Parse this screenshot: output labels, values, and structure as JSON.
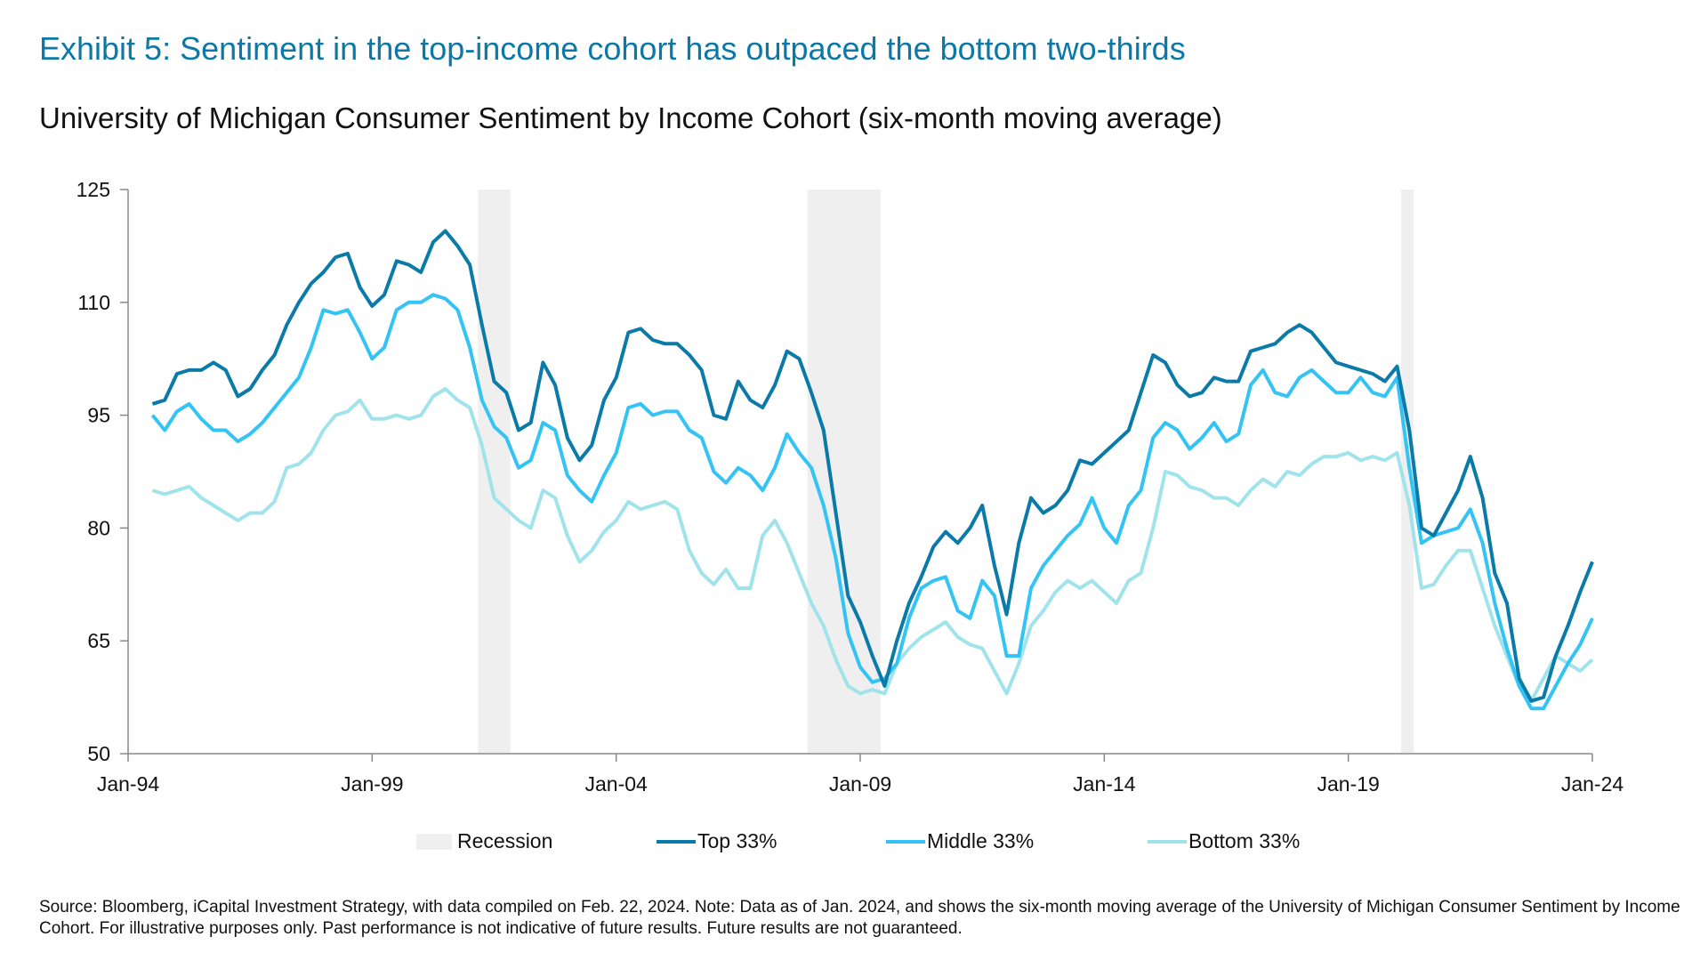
{
  "title": "Exhibit 5: Sentiment in the top-income cohort has outpaced the bottom two-thirds",
  "subtitle": "University of Michigan Consumer Sentiment by Income Cohort (six-month moving average)",
  "source": "Source: Bloomberg, iCapital Investment Strategy, with data compiled on Feb. 22, 2024. Note: Data as of Jan. 2024, and shows the six-month moving average of the University of Michigan Consumer Sentiment by Income Cohort. For illustrative purposes only. Past performance is not indicative of future results. Future results are not guaranteed.",
  "chart_data": {
    "type": "line",
    "title": "",
    "xlabel": "",
    "ylabel": "",
    "ylim": [
      50,
      125
    ],
    "yticks": [
      50,
      65,
      80,
      95,
      110,
      125
    ],
    "xlim": [
      "1994-01",
      "2024-01"
    ],
    "xticks": [
      {
        "date": "1994-01",
        "label": "Jan-94"
      },
      {
        "date": "1999-01",
        "label": "Jan-99"
      },
      {
        "date": "2004-01",
        "label": "Jan-04"
      },
      {
        "date": "2009-01",
        "label": "Jan-09"
      },
      {
        "date": "2014-01",
        "label": "Jan-14"
      },
      {
        "date": "2019-01",
        "label": "Jan-19"
      },
      {
        "date": "2024-01",
        "label": "Jan-24"
      }
    ],
    "grid": false,
    "legend_position": "bottom",
    "recession_label": "Recession",
    "recession_color": "#efefef",
    "recessions": [
      {
        "start": "2001-03",
        "end": "2001-11"
      },
      {
        "start": "2007-12",
        "end": "2009-06"
      },
      {
        "start": "2020-02",
        "end": "2020-04"
      }
    ],
    "x": [
      "1994-07",
      "1994-10",
      "1995-01",
      "1995-04",
      "1995-07",
      "1995-10",
      "1996-01",
      "1996-04",
      "1996-07",
      "1996-10",
      "1997-01",
      "1997-04",
      "1997-07",
      "1997-10",
      "1998-01",
      "1998-04",
      "1998-07",
      "1998-10",
      "1999-01",
      "1999-04",
      "1999-07",
      "1999-10",
      "2000-01",
      "2000-04",
      "2000-07",
      "2000-10",
      "2001-01",
      "2001-04",
      "2001-07",
      "2001-10",
      "2002-01",
      "2002-04",
      "2002-07",
      "2002-10",
      "2003-01",
      "2003-04",
      "2003-07",
      "2003-10",
      "2004-01",
      "2004-04",
      "2004-07",
      "2004-10",
      "2005-01",
      "2005-04",
      "2005-07",
      "2005-10",
      "2006-01",
      "2006-04",
      "2006-07",
      "2006-10",
      "2007-01",
      "2007-04",
      "2007-07",
      "2007-10",
      "2008-01",
      "2008-04",
      "2008-07",
      "2008-10",
      "2009-01",
      "2009-04",
      "2009-07",
      "2009-10",
      "2010-01",
      "2010-04",
      "2010-07",
      "2010-10",
      "2011-01",
      "2011-04",
      "2011-07",
      "2011-10",
      "2012-01",
      "2012-04",
      "2012-07",
      "2012-10",
      "2013-01",
      "2013-04",
      "2013-07",
      "2013-10",
      "2014-01",
      "2014-04",
      "2014-07",
      "2014-10",
      "2015-01",
      "2015-04",
      "2015-07",
      "2015-10",
      "2016-01",
      "2016-04",
      "2016-07",
      "2016-10",
      "2017-01",
      "2017-04",
      "2017-07",
      "2017-10",
      "2018-01",
      "2018-04",
      "2018-07",
      "2018-10",
      "2019-01",
      "2019-04",
      "2019-07",
      "2019-10",
      "2020-01",
      "2020-04",
      "2020-07",
      "2020-10",
      "2021-01",
      "2021-04",
      "2021-07",
      "2021-10",
      "2022-01",
      "2022-04",
      "2022-07",
      "2022-10",
      "2023-01",
      "2023-04",
      "2023-07",
      "2023-10",
      "2024-01"
    ],
    "series": [
      {
        "name": "Top 33%",
        "color": "#0a7aa8",
        "values": [
          96.5,
          97,
          100.5,
          101,
          101,
          102,
          101,
          97.5,
          98.5,
          101,
          103,
          107,
          110,
          112.5,
          114,
          116,
          116.5,
          112,
          109.5,
          111,
          115.5,
          115,
          114,
          118,
          119.5,
          117.5,
          115,
          107,
          99.5,
          98,
          93,
          94,
          102,
          99,
          92,
          89,
          91,
          97,
          100,
          106,
          106.5,
          105,
          104.5,
          104.5,
          103,
          101,
          95,
          94.5,
          99.5,
          97,
          96,
          99,
          103.5,
          102.5,
          98,
          93,
          82,
          71,
          67.5,
          63,
          59,
          65,
          70,
          73.5,
          77.5,
          79.5,
          78,
          80,
          83,
          75,
          68.5,
          78,
          84,
          82,
          83,
          85,
          89,
          88.5,
          90,
          91.5,
          93,
          98,
          103,
          102,
          99,
          97.5,
          98,
          100,
          99.5,
          99.5,
          103.5,
          104,
          104.5,
          106,
          107,
          106,
          104,
          102,
          101.5,
          101,
          100.5,
          99.5,
          101.5,
          93,
          80,
          79,
          82,
          85,
          89.5,
          84,
          74,
          70,
          60,
          57,
          57.5,
          63,
          67,
          71.5,
          75.5
        ]
      },
      {
        "name": "Middle 33%",
        "color": "#33c3f5",
        "values": [
          95,
          93,
          95.5,
          96.5,
          94.5,
          93,
          93,
          91.5,
          92.5,
          94,
          96,
          98,
          100,
          104,
          109,
          108.5,
          109,
          106,
          102.5,
          104,
          109,
          110,
          110,
          111,
          110.5,
          109,
          104,
          97,
          93.5,
          92,
          88,
          89,
          94,
          93,
          87,
          85,
          83.5,
          87,
          90,
          96,
          96.5,
          95,
          95.5,
          95.5,
          93,
          92,
          87.5,
          86,
          88,
          87,
          85,
          88,
          92.5,
          90,
          88,
          83,
          76,
          66,
          61.5,
          59.5,
          60,
          62,
          68,
          72,
          73,
          73.5,
          69,
          68,
          73,
          71,
          63,
          63,
          72,
          75,
          77,
          79,
          80.5,
          84,
          80,
          78,
          83,
          85,
          92,
          94,
          93,
          90.5,
          92,
          94,
          91.5,
          92.5,
          99,
          101,
          98,
          97.5,
          100,
          101,
          99.5,
          98,
          98,
          100,
          98,
          97.5,
          100,
          88,
          78,
          79,
          79.5,
          80,
          82.5,
          78,
          70,
          64,
          59,
          56,
          56,
          59,
          62,
          64.5,
          68
        ]
      },
      {
        "name": "Bottom 33%",
        "color": "#a0e3ea",
        "values": [
          85,
          84.5,
          85,
          85.5,
          84,
          83,
          82,
          81,
          82,
          82,
          83.5,
          88,
          88.5,
          90,
          93,
          95,
          95.5,
          97,
          94.5,
          94.5,
          95,
          94.5,
          95,
          97.5,
          98.5,
          97,
          96,
          91,
          84,
          82.5,
          81,
          80,
          85,
          84,
          79,
          75.5,
          77,
          79.5,
          81,
          83.5,
          82.5,
          83,
          83.5,
          82.5,
          77,
          74,
          72.5,
          74.5,
          72,
          72,
          79,
          81,
          78,
          74,
          70,
          67,
          62.5,
          59,
          58,
          58.5,
          58,
          62,
          64,
          65.5,
          66.5,
          67.5,
          65.5,
          64.5,
          64,
          61,
          58,
          62,
          67,
          69,
          71.5,
          73,
          72,
          73,
          71.5,
          70,
          73,
          74,
          80,
          87.5,
          87,
          85.5,
          85,
          84,
          84,
          83,
          85,
          86.5,
          85.5,
          87.5,
          87,
          88.5,
          89.5,
          89.5,
          90,
          89,
          89.5,
          89,
          90,
          83,
          72,
          72.5,
          75,
          77,
          77,
          72,
          67,
          63,
          59,
          57,
          60,
          63,
          62,
          61,
          62.5
        ]
      }
    ]
  }
}
